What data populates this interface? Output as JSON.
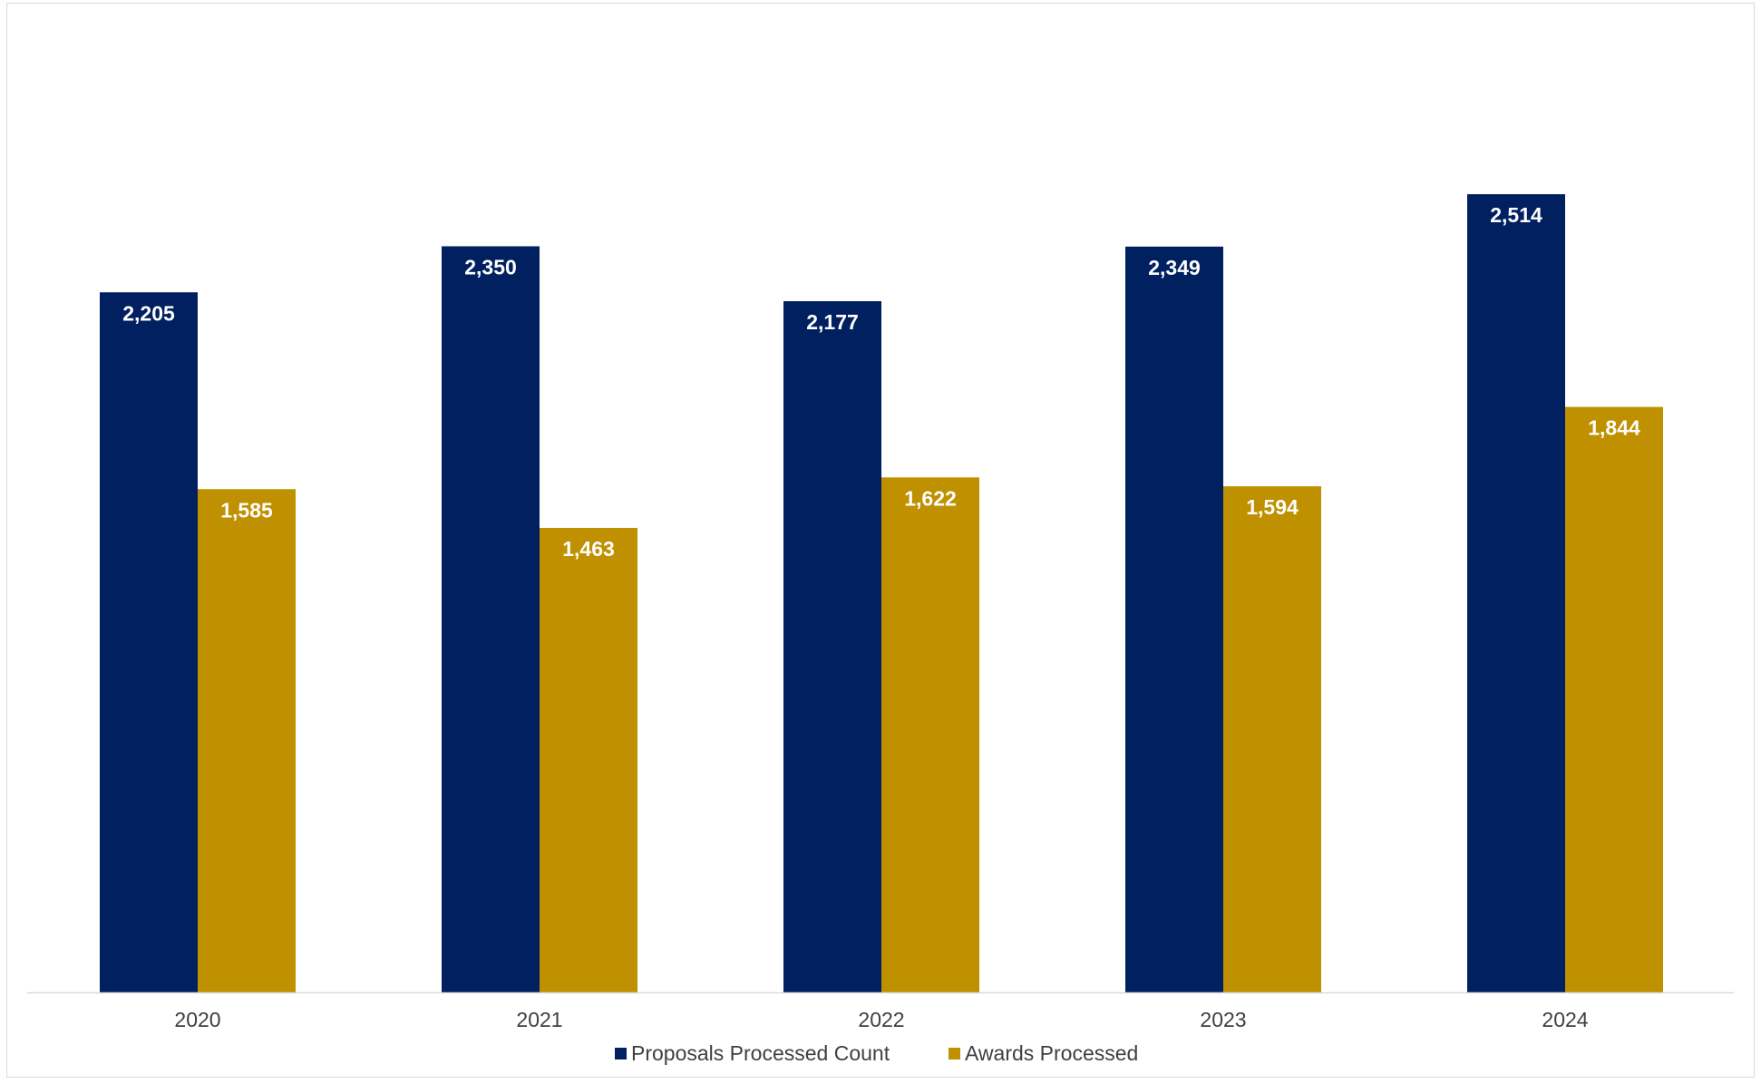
{
  "chart_data": {
    "type": "bar",
    "categories": [
      "2020",
      "2021",
      "2022",
      "2023",
      "2024"
    ],
    "series": [
      {
        "name": "Proposals Processed Count",
        "values": [
          2205,
          2350,
          2177,
          2349,
          2514
        ],
        "labels": [
          "2,205",
          "2,350",
          "2,177",
          "2,349",
          "2,514"
        ],
        "color": "#002060"
      },
      {
        "name": "Awards Processed",
        "values": [
          1585,
          1463,
          1622,
          1594,
          1844
        ],
        "labels": [
          "1,585",
          "1,463",
          "1,622",
          "1,594",
          "1,844"
        ],
        "color": "#BF9000"
      }
    ],
    "ylim": [
      0,
      3000
    ],
    "grid": false,
    "legend": "bottom-center",
    "axis_color": "#d9d9d9",
    "label_color": "#404040"
  }
}
